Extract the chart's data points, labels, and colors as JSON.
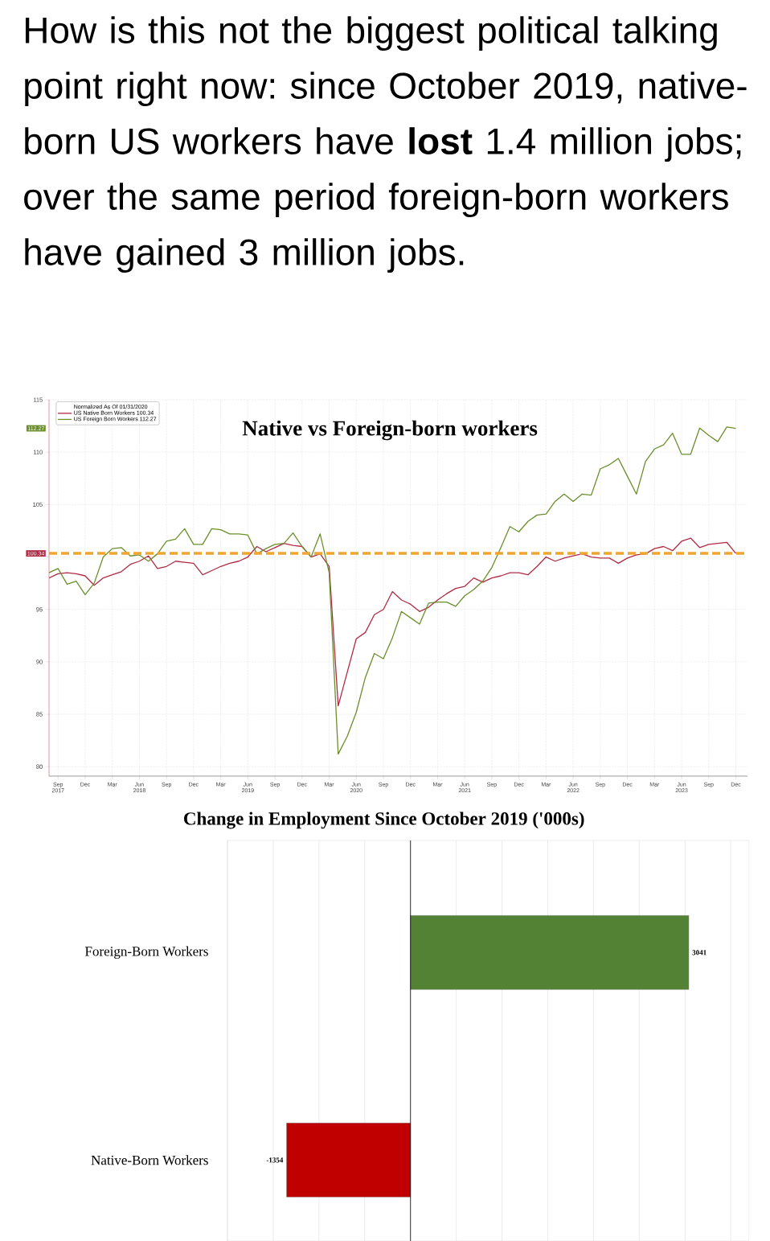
{
  "chart_data": [
    {
      "type": "other",
      "title": "How is this not the biggest political talking point right now: since October 2019, native-born US workers have **lost** 1.4 million jobs; over the same period foreign-born workers have gained 3 million jobs."
    },
    {
      "type": "line",
      "title": "Native vs Foreign-born workers",
      "legend_title": "Normalized As Of 01/31/2020",
      "x": [
        "2017-08",
        "2017-09",
        "2017-10",
        "2017-11",
        "2017-12",
        "2018-01",
        "2018-02",
        "2018-03",
        "2018-04",
        "2018-05",
        "2018-06",
        "2018-07",
        "2018-08",
        "2018-09",
        "2018-10",
        "2018-11",
        "2018-12",
        "2019-01",
        "2019-02",
        "2019-03",
        "2019-04",
        "2019-05",
        "2019-06",
        "2019-07",
        "2019-08",
        "2019-09",
        "2019-10",
        "2019-11",
        "2019-12",
        "2020-01",
        "2020-02",
        "2020-03",
        "2020-04",
        "2020-05",
        "2020-06",
        "2020-07",
        "2020-08",
        "2020-09",
        "2020-10",
        "2020-11",
        "2020-12",
        "2021-01",
        "2021-02",
        "2021-03",
        "2021-04",
        "2021-05",
        "2021-06",
        "2021-07",
        "2021-08",
        "2021-09",
        "2021-10",
        "2021-11",
        "2021-12",
        "2022-01",
        "2022-02",
        "2022-03",
        "2022-04",
        "2022-05",
        "2022-06",
        "2022-07",
        "2022-08",
        "2022-09",
        "2022-10",
        "2022-11",
        "2022-12",
        "2023-01",
        "2023-02",
        "2023-03",
        "2023-04",
        "2023-05",
        "2023-06",
        "2023-07",
        "2023-08",
        "2023-09",
        "2023-10",
        "2023-11",
        "2023-12"
      ],
      "series": [
        {
          "name": "US Native Born Workers 100.34",
          "color": "#b22b45",
          "values": [
            98.0,
            98.4,
            98.5,
            98.4,
            98.2,
            97.3,
            98.0,
            98.3,
            98.6,
            99.3,
            99.6,
            100.1,
            98.9,
            99.1,
            99.6,
            99.5,
            99.4,
            98.3,
            98.7,
            99.1,
            99.4,
            99.6,
            100.0,
            101.0,
            100.5,
            100.9,
            101.3,
            101.1,
            101.0,
            100.0,
            100.3,
            99.1,
            85.8,
            89.0,
            92.2,
            92.8,
            94.5,
            95.0,
            96.7,
            95.9,
            95.5,
            94.8,
            95.2,
            95.9,
            96.5,
            97.0,
            97.2,
            98.0,
            97.6,
            98.0,
            98.2,
            98.5,
            98.5,
            98.3,
            99.1,
            100.0,
            99.6,
            99.9,
            100.1,
            100.3,
            100.0,
            99.9,
            99.9,
            99.4,
            99.9,
            100.2,
            100.3,
            100.8,
            101.0,
            100.6,
            101.5,
            101.8,
            100.9,
            101.2,
            101.3,
            101.4,
            100.34
          ]
        },
        {
          "name": "US Foreign Born Workers 112.27",
          "color": "#6b8f2a",
          "values": [
            98.5,
            98.9,
            97.4,
            97.7,
            96.4,
            97.5,
            100.0,
            100.8,
            100.9,
            100.1,
            100.2,
            99.6,
            100.3,
            101.5,
            101.7,
            102.7,
            101.2,
            101.2,
            102.7,
            102.6,
            102.2,
            102.2,
            102.1,
            100.3,
            100.8,
            101.2,
            101.3,
            102.3,
            101.0,
            100.0,
            102.2,
            98.5,
            81.2,
            82.9,
            85.2,
            88.5,
            90.8,
            90.3,
            92.3,
            94.8,
            94.2,
            93.6,
            95.6,
            95.7,
            95.7,
            95.3,
            96.3,
            96.9,
            97.7,
            99.0,
            100.9,
            102.9,
            102.4,
            103.4,
            104.0,
            104.1,
            105.3,
            106.0,
            105.3,
            106.0,
            105.9,
            108.4,
            108.8,
            109.4,
            107.7,
            106.0,
            109.1,
            110.3,
            110.7,
            111.8,
            109.8,
            109.8,
            112.3,
            111.6,
            111.0,
            112.4,
            112.27
          ]
        }
      ],
      "xlim": [
        "2017-08",
        "2024-01-10"
      ],
      "ylim": [
        79.1,
        115
      ],
      "xticks": [
        {
          "value": "2017-09",
          "label": "Sep 2017"
        },
        {
          "value": "2017-12",
          "label": "Dec"
        },
        {
          "value": "2018-03",
          "label": "Mar"
        },
        {
          "value": "2018-06",
          "label": "Jun 2018"
        },
        {
          "value": "2018-09",
          "label": "Sep"
        },
        {
          "value": "2018-12",
          "label": "Dec"
        },
        {
          "value": "2019-03",
          "label": "Mar"
        },
        {
          "value": "2019-06",
          "label": "Jun 2019"
        },
        {
          "value": "2019-09",
          "label": "Sep"
        },
        {
          "value": "2019-12",
          "label": "Dec"
        },
        {
          "value": "2020-03",
          "label": "Mar"
        },
        {
          "value": "2020-06",
          "label": "Jun 2020"
        },
        {
          "value": "2020-09",
          "label": "Sep"
        },
        {
          "value": "2020-12",
          "label": "Dec"
        },
        {
          "value": "2021-03",
          "label": "Mar"
        },
        {
          "value": "2021-06",
          "label": "Jun 2021"
        },
        {
          "value": "2021-09",
          "label": "Sep"
        },
        {
          "value": "2021-12",
          "label": "Dec"
        },
        {
          "value": "2022-03",
          "label": "Mar"
        },
        {
          "value": "2022-06",
          "label": "Jun 2022"
        },
        {
          "value": "2022-09",
          "label": "Sep"
        },
        {
          "value": "2022-12",
          "label": "Dec"
        },
        {
          "value": "2023-03",
          "label": "Mar"
        },
        {
          "value": "2023-06",
          "label": "Jun 2023"
        },
        {
          "value": "2023-09",
          "label": "Sep"
        },
        {
          "value": "2023-12",
          "label": "Dec"
        }
      ],
      "yticks": [
        80,
        85,
        90,
        95,
        {
          "value": 100,
          "label": null
        },
        105,
        110,
        115
      ],
      "grid": true,
      "legend": "top left",
      "ref_lines": [
        {
          "axis": "y",
          "value": 100.34,
          "label": "100.34",
          "color": "#f0a530",
          "line_style": "dashed"
        }
      ],
      "annotations": [
        "112.27"
      ]
    },
    {
      "type": "bar",
      "orientation": "horizontal",
      "title": "Change in Employment Since October 2019 ('000s)",
      "categories": [
        "Foreign-Born Workers",
        "Native-Born Workers"
      ],
      "values": [
        3041,
        -1354
      ],
      "colors": [
        "#548235",
        "#c00000"
      ],
      "data_labels": true,
      "xlim": [
        -2000,
        3700
      ],
      "xticks": [
        -2000,
        -1500,
        -1000,
        -500,
        0,
        500,
        1000,
        1500,
        2000,
        2500,
        3000,
        3500
      ],
      "grid": "x",
      "tick_labels": "y"
    }
  ]
}
